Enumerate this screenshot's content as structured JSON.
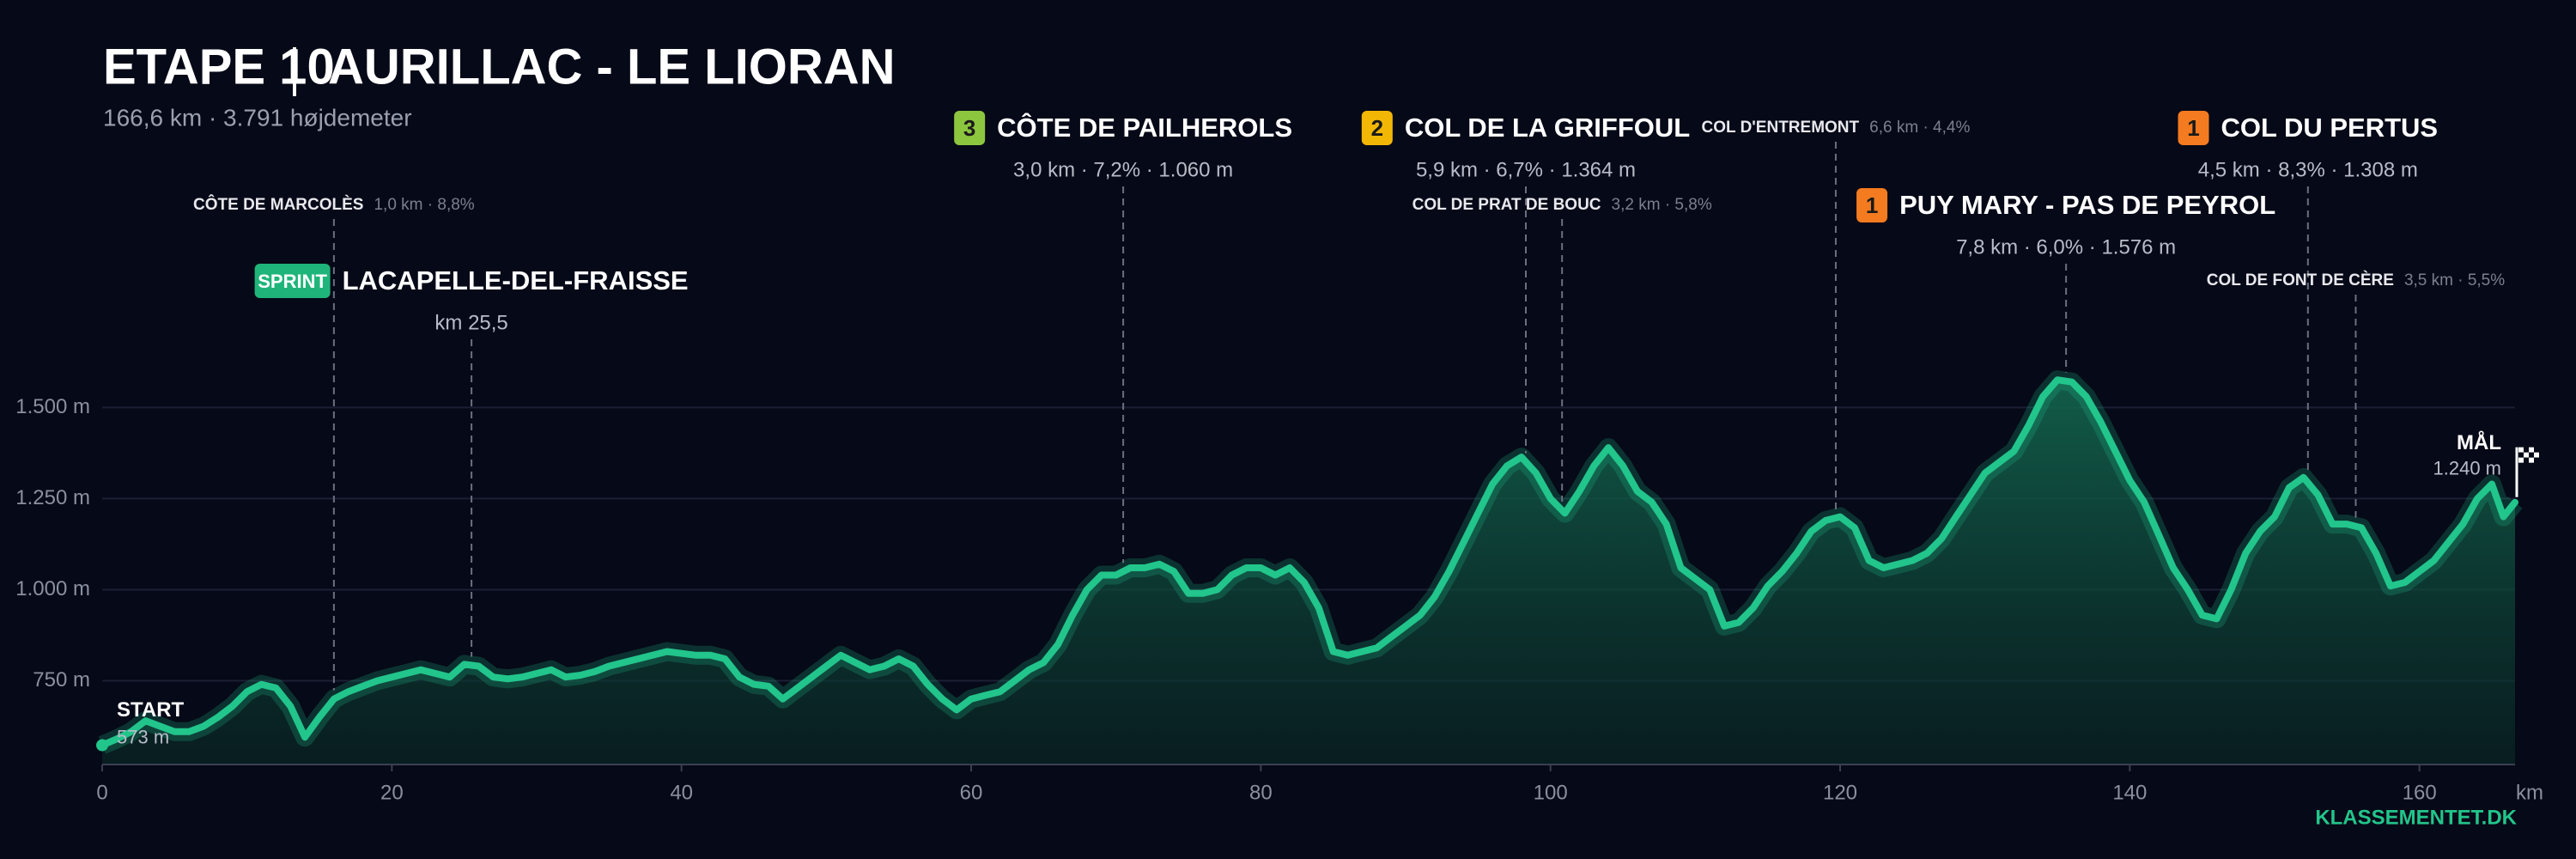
{
  "chart_data": {
    "type": "area",
    "title": "ETAPE 10",
    "title_route": "AURILLAC - LE LIORAN",
    "subtitle": "166,6 km · 3.791 højdemeter",
    "x_label": "km",
    "brand": "KLASSEMENTET.DK",
    "color": "#22c58b",
    "xlim": [
      0,
      166.6
    ],
    "xticks": [
      0,
      20,
      40,
      60,
      80,
      100,
      120,
      140,
      160
    ],
    "ylim": [
      520,
      1600
    ],
    "yticks": [
      {
        "value": 750,
        "label": "750 m"
      },
      {
        "value": 1000,
        "label": "1.000 m"
      },
      {
        "value": 1250,
        "label": "1.250 m"
      },
      {
        "value": 1500,
        "label": "1.500 m"
      }
    ],
    "grid": true,
    "x": [
      0,
      1,
      2,
      3,
      4,
      5,
      6,
      7,
      8,
      9,
      10,
      11,
      12,
      13,
      14,
      15,
      16,
      17,
      18,
      19,
      20,
      21,
      22,
      23,
      24,
      25,
      26,
      27,
      28,
      29,
      30,
      31,
      32,
      33,
      34,
      35,
      36,
      37,
      38,
      39,
      40,
      41,
      42,
      43,
      44,
      45,
      46,
      47,
      48,
      49,
      50,
      51,
      52,
      53,
      54,
      55,
      56,
      57,
      58,
      59,
      60,
      61,
      62,
      63,
      64,
      65,
      66,
      67,
      68,
      69,
      70,
      71,
      72,
      73,
      74,
      75,
      76,
      77,
      78,
      79,
      80,
      81,
      82,
      83,
      84,
      85,
      86,
      87,
      88,
      89,
      90,
      91,
      92,
      93,
      94,
      95,
      96,
      97,
      98,
      99,
      100,
      101,
      102,
      103,
      104,
      105,
      106,
      107,
      108,
      109,
      110,
      111,
      112,
      113,
      114,
      115,
      116,
      117,
      118,
      119,
      120,
      121,
      122,
      123,
      124,
      125,
      126,
      127,
      128,
      129,
      130,
      131,
      132,
      133,
      134,
      135,
      136,
      137,
      138,
      139,
      140,
      141,
      142,
      143,
      144,
      145,
      146,
      147,
      148,
      149,
      150,
      151,
      152,
      153,
      154,
      155,
      156,
      157,
      158,
      159,
      160,
      161,
      162,
      163,
      164,
      165,
      165.8,
      166.6
    ],
    "values": [
      573,
      590,
      610,
      640,
      625,
      610,
      610,
      625,
      650,
      680,
      720,
      740,
      730,
      680,
      595,
      650,
      700,
      720,
      735,
      750,
      760,
      770,
      780,
      770,
      760,
      795,
      790,
      760,
      755,
      760,
      770,
      780,
      760,
      765,
      775,
      790,
      800,
      810,
      820,
      830,
      825,
      820,
      820,
      810,
      760,
      740,
      735,
      700,
      730,
      760,
      790,
      820,
      800,
      780,
      790,
      810,
      790,
      740,
      700,
      670,
      700,
      710,
      720,
      750,
      780,
      800,
      850,
      930,
      1000,
      1040,
      1040,
      1060,
      1060,
      1070,
      1050,
      990,
      990,
      1000,
      1040,
      1060,
      1060,
      1040,
      1060,
      1020,
      950,
      830,
      820,
      830,
      840,
      870,
      900,
      930,
      980,
      1050,
      1130,
      1210,
      1290,
      1340,
      1364,
      1320,
      1250,
      1210,
      1270,
      1340,
      1390,
      1340,
      1270,
      1240,
      1180,
      1060,
      1030,
      1000,
      900,
      910,
      950,
      1010,
      1050,
      1100,
      1160,
      1190,
      1200,
      1170,
      1080,
      1060,
      1070,
      1080,
      1100,
      1140,
      1200,
      1260,
      1320,
      1350,
      1380,
      1450,
      1530,
      1576,
      1570,
      1530,
      1460,
      1380,
      1300,
      1240,
      1150,
      1060,
      1000,
      930,
      920,
      1000,
      1100,
      1160,
      1200,
      1280,
      1308,
      1260,
      1180,
      1180,
      1170,
      1100,
      1010,
      1020,
      1050,
      1080,
      1130,
      1180,
      1250,
      1290,
      1200,
      1240
    ],
    "ends": [
      {
        "text": "START",
        "value_label": "573 m",
        "x": 0,
        "y": 573
      },
      {
        "text": "MÅL",
        "value_label": "1.240 m",
        "x": 166.6,
        "y": 1240
      }
    ],
    "category_colors": {
      "1": "#f47b20",
      "2": "#f2b705",
      "3": "#8cc63f",
      "SPRINT": "#1fb57a"
    },
    "climbs": [
      {
        "name": "CÔTE DE MARCOLÈS",
        "stats": "1,0 km · 8,8%",
        "km": 16.0
      },
      {
        "category": "SPRINT",
        "name": "LACAPELLE-DEL-FRAISSE",
        "stats": "km 25,5",
        "km": 25.5
      },
      {
        "category": 3,
        "name": "CÔTE DE PAILHEROLS",
        "stats": "3,0 km · 7,2% · 1.060 m",
        "km": 70.5
      },
      {
        "category": 2,
        "name": "COL DE LA GRIFFOUL",
        "stats": "5,9 km · 6,7% · 1.364 m",
        "km": 98.3
      },
      {
        "name": "COL DE PRAT DE BOUC",
        "stats": "3,2 km · 5,8%",
        "km": 100.8
      },
      {
        "name": "COL D'ENTREMONT",
        "stats": "6,6 km · 4,4%",
        "km": 119.7
      },
      {
        "category": 1,
        "name": "PUY MARY - PAS DE PEYROL",
        "stats": "7,8 km · 6,0% · 1.576 m",
        "km": 135.6
      },
      {
        "category": 1,
        "name": "COL DU PERTUS",
        "stats": "4,5 km · 8,3% · 1.308 m",
        "km": 152.3
      },
      {
        "name": "COL DE FONT DE CÈRE",
        "stats": "3,5 km · 5,5%",
        "km": 155.6
      }
    ]
  }
}
